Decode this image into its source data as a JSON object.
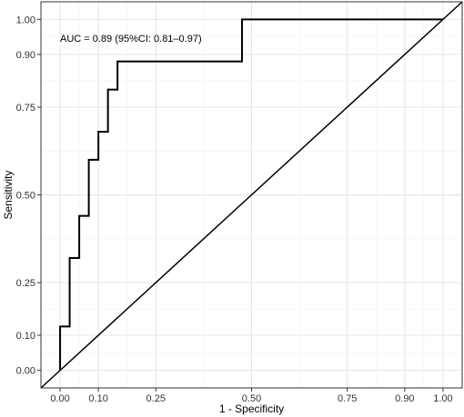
{
  "chart_data": {
    "type": "line",
    "xlabel": "1 - Specificity",
    "ylabel": "Sensitivity",
    "annotation": "AUC = 0.89 (95%CI: 0.81–0.97)",
    "xlim": [
      -0.05,
      1.05
    ],
    "ylim": [
      -0.05,
      1.05
    ],
    "x_ticks": [
      0.0,
      0.1,
      0.25,
      0.5,
      0.75,
      0.9,
      1.0
    ],
    "x_tick_labels": [
      "0.00",
      "0.10",
      "0.25",
      "0.50",
      "0.75",
      "0.90",
      "1.00"
    ],
    "y_ticks": [
      0.0,
      0.1,
      0.25,
      0.5,
      0.75,
      0.9,
      1.0
    ],
    "y_tick_labels": [
      "0.00",
      "0.10",
      "0.25",
      "0.50",
      "0.75",
      "0.90",
      "1.00"
    ],
    "grid": true,
    "series": [
      {
        "line_style": "step",
        "x": [
          0.0,
          0.0,
          0.025,
          0.025,
          0.05,
          0.05,
          0.075,
          0.075,
          0.1,
          0.1,
          0.125,
          0.125,
          0.15,
          0.15,
          0.475,
          0.475,
          1.0
        ],
        "y": [
          0.0,
          0.125,
          0.125,
          0.32,
          0.32,
          0.44,
          0.44,
          0.6,
          0.6,
          0.68,
          0.68,
          0.8,
          0.8,
          0.88,
          0.88,
          1.0,
          1.0
        ]
      },
      {
        "line_style": "reference-diagonal",
        "x": [
          -0.05,
          1.05
        ],
        "y": [
          -0.05,
          1.05
        ]
      }
    ]
  }
}
